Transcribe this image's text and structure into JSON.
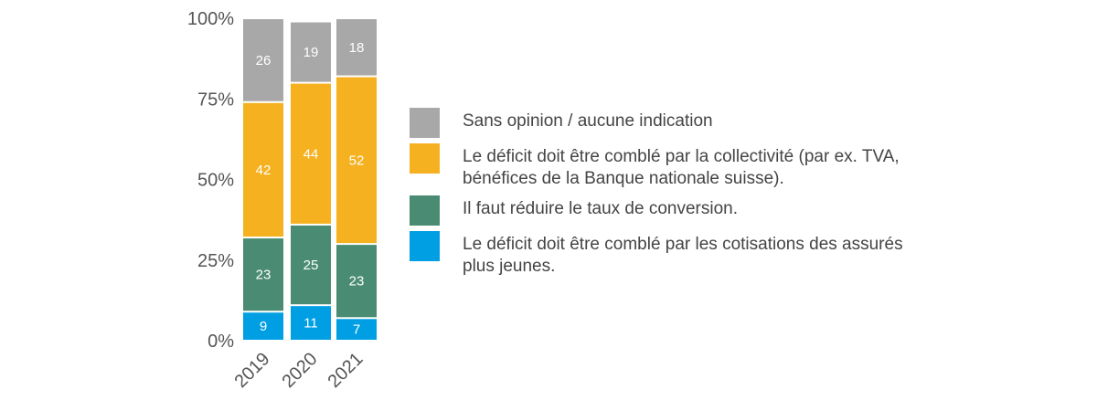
{
  "chart_data": {
    "type": "bar",
    "stacked": true,
    "categories": [
      "2019",
      "2020",
      "2021"
    ],
    "series": [
      {
        "name": "Le déficit doit être comblé par les cotisations des assurés plus jeunes.",
        "values": [
          9,
          11,
          7
        ],
        "color": "#009fe3"
      },
      {
        "name": "Il faut réduire le taux de conversion.",
        "values": [
          23,
          25,
          23
        ],
        "color": "#4a8c73"
      },
      {
        "name": "Le déficit doit être comblé par la collectivité (par ex. TVA, bénéfices de la Banque nationale suisse).",
        "values": [
          42,
          44,
          52
        ],
        "color": "#f5b11f"
      },
      {
        "name": "Sans opinion / aucune indication",
        "values": [
          26,
          19,
          18
        ],
        "color": "#a8a8a8"
      }
    ],
    "y_ticks": [
      "0%",
      "25%",
      "50%",
      "75%",
      "100%"
    ],
    "ylim": [
      0,
      100
    ],
    "grid": false,
    "legend_position": "right",
    "legend_order": [
      3,
      2,
      1,
      0
    ]
  }
}
